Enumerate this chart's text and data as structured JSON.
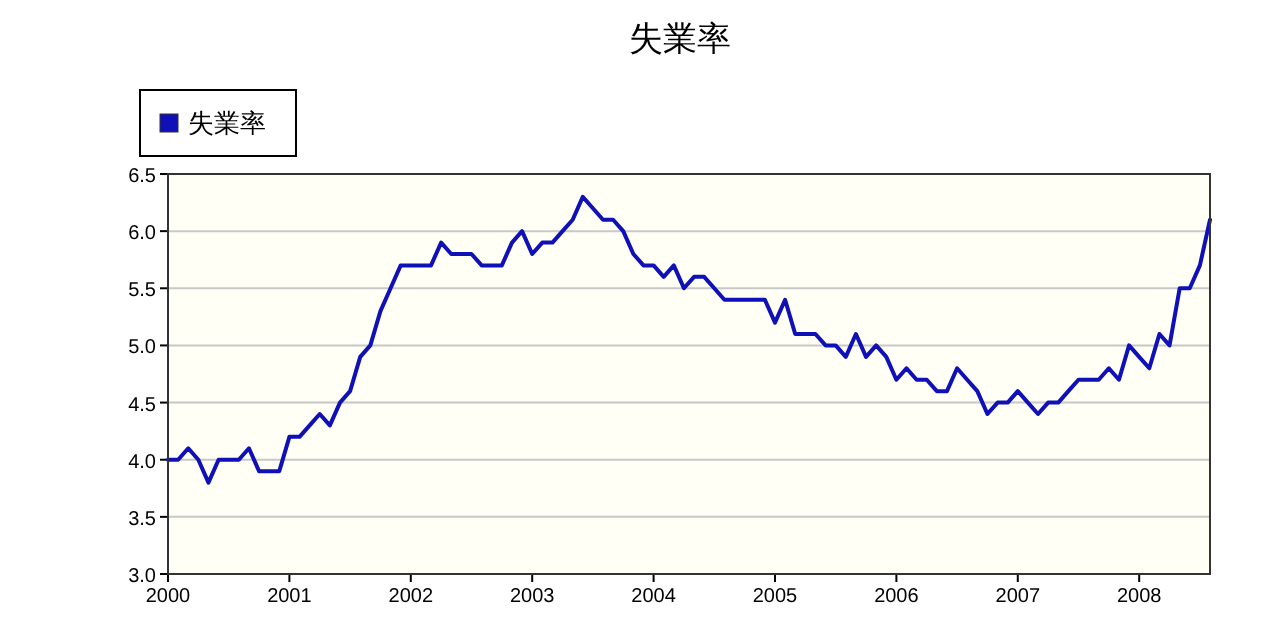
{
  "chart_data": {
    "type": "line",
    "title": "失業率",
    "x": [
      "2000-01",
      "2000-02",
      "2000-03",
      "2000-04",
      "2000-05",
      "2000-06",
      "2000-07",
      "2000-08",
      "2000-09",
      "2000-10",
      "2000-11",
      "2000-12",
      "2001-01",
      "2001-02",
      "2001-03",
      "2001-04",
      "2001-05",
      "2001-06",
      "2001-07",
      "2001-08",
      "2001-09",
      "2001-10",
      "2001-11",
      "2001-12",
      "2002-01",
      "2002-02",
      "2002-03",
      "2002-04",
      "2002-05",
      "2002-06",
      "2002-07",
      "2002-08",
      "2002-09",
      "2002-10",
      "2002-11",
      "2002-12",
      "2003-01",
      "2003-02",
      "2003-03",
      "2003-04",
      "2003-05",
      "2003-06",
      "2003-07",
      "2003-08",
      "2003-09",
      "2003-10",
      "2003-11",
      "2003-12",
      "2004-01",
      "2004-02",
      "2004-03",
      "2004-04",
      "2004-05",
      "2004-06",
      "2004-07",
      "2004-08",
      "2004-09",
      "2004-10",
      "2004-11",
      "2004-12",
      "2005-01",
      "2005-02",
      "2005-03",
      "2005-04",
      "2005-05",
      "2005-06",
      "2005-07",
      "2005-08",
      "2005-09",
      "2005-10",
      "2005-11",
      "2005-12",
      "2006-01",
      "2006-02",
      "2006-03",
      "2006-04",
      "2006-05",
      "2006-06",
      "2006-07",
      "2006-08",
      "2006-09",
      "2006-10",
      "2006-11",
      "2006-12",
      "2007-01",
      "2007-02",
      "2007-03",
      "2007-04",
      "2007-05",
      "2007-06",
      "2007-07",
      "2007-08",
      "2007-09",
      "2007-10",
      "2007-11",
      "2007-12",
      "2008-01",
      "2008-02",
      "2008-03",
      "2008-04",
      "2008-05",
      "2008-06",
      "2008-07",
      "2008-08"
    ],
    "series": [
      {
        "name": "失業率",
        "color": "#1010b8",
        "values": [
          4.0,
          4.0,
          4.1,
          4.0,
          3.8,
          4.0,
          4.0,
          4.0,
          4.1,
          3.9,
          3.9,
          3.9,
          4.2,
          4.2,
          4.3,
          4.4,
          4.3,
          4.5,
          4.6,
          4.9,
          5.0,
          5.3,
          5.5,
          5.7,
          5.7,
          5.7,
          5.7,
          5.9,
          5.8,
          5.8,
          5.8,
          5.7,
          5.7,
          5.7,
          5.9,
          6.0,
          5.8,
          5.9,
          5.9,
          6.0,
          6.1,
          6.3,
          6.2,
          6.1,
          6.1,
          6.0,
          5.8,
          5.7,
          5.7,
          5.6,
          5.7,
          5.5,
          5.6,
          5.6,
          5.5,
          5.4,
          5.4,
          5.4,
          5.4,
          5.4,
          5.2,
          5.4,
          5.1,
          5.1,
          5.1,
          5.0,
          5.0,
          4.9,
          5.1,
          4.9,
          5.0,
          4.9,
          4.7,
          4.8,
          4.7,
          4.7,
          4.6,
          4.6,
          4.8,
          4.7,
          4.6,
          4.4,
          4.5,
          4.5,
          4.6,
          4.5,
          4.4,
          4.5,
          4.5,
          4.6,
          4.7,
          4.7,
          4.7,
          4.8,
          4.7,
          5.0,
          4.9,
          4.8,
          5.1,
          5.0,
          5.5,
          5.5,
          5.7,
          6.1
        ]
      }
    ],
    "xlim": [
      "2000-01",
      "2008-08"
    ],
    "xticks": [
      {
        "value": "2000-01",
        "label": "2000"
      },
      {
        "value": "2001-01",
        "label": "2001"
      },
      {
        "value": "2002-01",
        "label": "2002"
      },
      {
        "value": "2003-01",
        "label": "2003"
      },
      {
        "value": "2004-01",
        "label": "2004"
      },
      {
        "value": "2005-01",
        "label": "2005"
      },
      {
        "value": "2006-01",
        "label": "2006"
      },
      {
        "value": "2007-01",
        "label": "2007"
      },
      {
        "value": "2008-01",
        "label": "2008"
      }
    ],
    "ylim": [
      3.0,
      6.5
    ],
    "yticks": [
      {
        "value": 3.0,
        "label": "3.0"
      },
      {
        "value": 3.5,
        "label": "3.5"
      },
      {
        "value": 4.0,
        "label": "4.0"
      },
      {
        "value": 4.5,
        "label": "4.5"
      },
      {
        "value": 5.0,
        "label": "5.0"
      },
      {
        "value": 5.5,
        "label": "5.5"
      },
      {
        "value": 6.0,
        "label": "6.0"
      },
      {
        "value": 6.5,
        "label": "6.5"
      }
    ],
    "grid": "y",
    "legend": "top left",
    "marker": "none",
    "line_style": "solid"
  }
}
